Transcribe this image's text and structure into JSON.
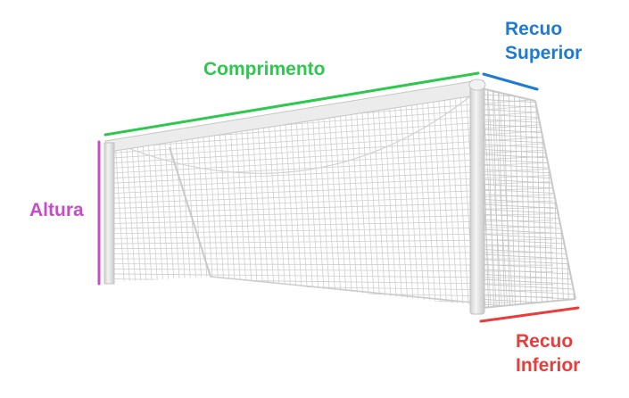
{
  "labels": {
    "length": "Comprimento",
    "top_setback_line1": "Recuo",
    "top_setback_line2": "Superior",
    "height": "Altura",
    "bottom_setback_line1": "Recuo",
    "bottom_setback_line2": "Inferior"
  },
  "colors": {
    "length": "#2ec84f",
    "top_setback": "#1f7ad1",
    "height": "#c74cc7",
    "bottom_setback": "#ec3b3b",
    "frame": "#e6e6e6",
    "frame_shadow": "#bdbdbd",
    "net": "#c9c9c9"
  },
  "icons": {
    "goal": "football-goal-illustration"
  }
}
